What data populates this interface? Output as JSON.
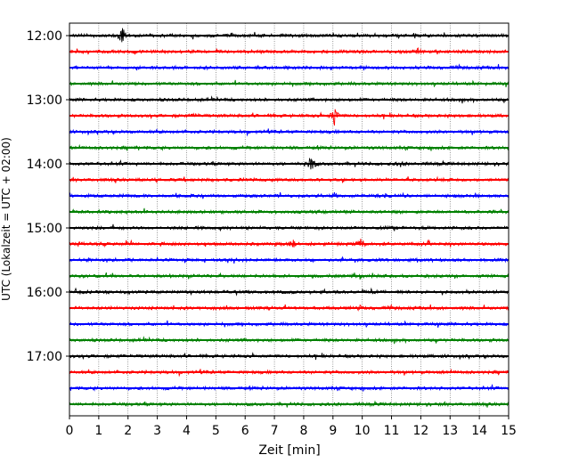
{
  "chart_data": {
    "type": "line",
    "xlabel": "Zeit  [min]",
    "ylabel": "UTC (Lokalzeit = UTC + 02:00)",
    "xlim": [
      0,
      15
    ],
    "x_ticks": [
      0,
      1,
      2,
      3,
      4,
      5,
      6,
      7,
      8,
      9,
      10,
      11,
      12,
      13,
      14,
      15
    ],
    "x_tick_labels": [
      "0",
      "1",
      "2",
      "3",
      "4",
      "5",
      "6",
      "7",
      "8",
      "9",
      "10",
      "11",
      "12",
      "13",
      "14",
      "15"
    ],
    "vertical_grid": true,
    "y_tick_labels": [
      "12:00",
      "13:00",
      "14:00",
      "15:00",
      "16:00",
      "17:00"
    ],
    "trace_colors": [
      "#000000",
      "#ff0000",
      "#0000ff",
      "#008000"
    ],
    "traces_per_hour": 4,
    "trace_count": 24,
    "events": [
      {
        "trace": 0,
        "x": 1.8,
        "amplitude": 1.0
      },
      {
        "trace": 1,
        "x": 11.9,
        "amplitude": 0.25
      },
      {
        "trace": 5,
        "x": 9.05,
        "amplitude": 0.9
      },
      {
        "trace": 5,
        "x": 4.3,
        "amplitude": 0.15
      },
      {
        "trace": 8,
        "x": 8.25,
        "amplitude": 0.85
      },
      {
        "trace": 8,
        "x": 11.3,
        "amplitude": 0.2
      },
      {
        "trace": 9,
        "x": 4.9,
        "amplitude": 0.15
      },
      {
        "trace": 10,
        "x": 9.05,
        "amplitude": 0.2
      },
      {
        "trace": 13,
        "x": 7.6,
        "amplitude": 0.45
      },
      {
        "trace": 13,
        "x": 9.95,
        "amplitude": 0.5
      },
      {
        "trace": 13,
        "x": 0.3,
        "amplitude": 0.15
      },
      {
        "trace": 17,
        "x": 9.9,
        "amplitude": 0.15
      }
    ]
  }
}
